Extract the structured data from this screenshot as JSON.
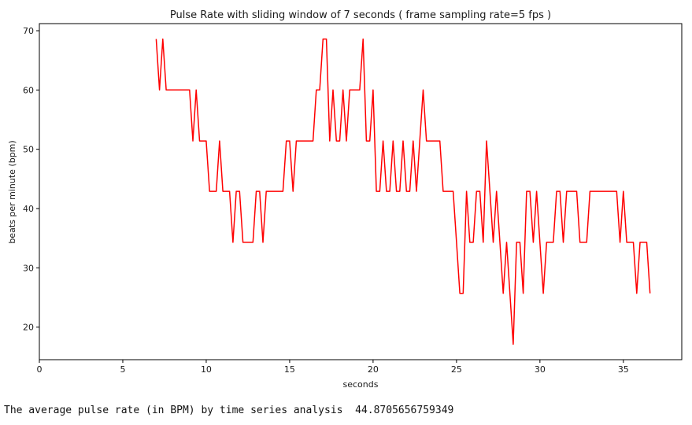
{
  "chart_data": {
    "type": "line",
    "title": "Pulse Rate with sliding window of 7 seconds  ( frame sampling rate=5 fps )",
    "xlabel": "seconds",
    "ylabel": "beats per minute (bpm)",
    "xlim": [
      0,
      38.5
    ],
    "ylim": [
      14.5,
      71.2
    ],
    "xticks": [
      0,
      5,
      10,
      15,
      20,
      25,
      30,
      35
    ],
    "yticks": [
      20,
      30,
      40,
      50,
      60,
      70
    ],
    "grid": false,
    "series": [
      {
        "color": "#ff0000",
        "x": [
          7.0,
          7.2,
          7.4,
          7.6,
          7.8,
          8.0,
          8.2,
          8.4,
          8.6,
          8.8,
          9.0,
          9.2,
          9.4,
          9.6,
          9.8,
          10.0,
          10.2,
          10.4,
          10.6,
          10.8,
          11.0,
          11.2,
          11.4,
          11.6,
          11.8,
          12.0,
          12.2,
          12.4,
          12.6,
          12.8,
          13.0,
          13.2,
          13.4,
          13.6,
          13.8,
          14.0,
          14.2,
          14.4,
          14.6,
          14.8,
          15.0,
          15.2,
          15.4,
          15.6,
          15.8,
          16.0,
          16.2,
          16.4,
          16.6,
          16.8,
          17.0,
          17.2,
          17.4,
          17.6,
          17.8,
          18.0,
          18.2,
          18.4,
          18.6,
          18.8,
          19.0,
          19.2,
          19.4,
          19.6,
          19.8,
          20.0,
          20.2,
          20.4,
          20.6,
          20.8,
          21.0,
          21.2,
          21.4,
          21.6,
          21.8,
          22.0,
          22.2,
          22.4,
          22.6,
          22.8,
          23.0,
          23.2,
          23.4,
          23.6,
          23.8,
          24.0,
          24.2,
          24.4,
          24.6,
          24.8,
          25.0,
          25.2,
          25.4,
          25.6,
          25.8,
          26.0,
          26.2,
          26.4,
          26.6,
          26.8,
          27.0,
          27.2,
          27.4,
          27.6,
          27.8,
          28.0,
          28.2,
          28.4,
          28.6,
          28.8,
          29.0,
          29.2,
          29.4,
          29.6,
          29.8,
          30.0,
          30.2,
          30.4,
          30.6,
          30.8,
          31.0,
          31.2,
          31.4,
          31.6,
          31.8,
          32.0,
          32.2,
          32.4,
          32.6,
          32.8,
          33.0,
          33.2,
          33.4,
          33.6,
          33.8,
          34.0,
          34.2,
          34.4,
          34.6,
          34.8,
          35.0,
          35.2,
          35.4,
          35.6,
          35.8,
          36.0,
          36.2,
          36.4,
          36.6
        ],
        "y": [
          68.6,
          60.0,
          68.6,
          60.0,
          60.0,
          60.0,
          60.0,
          60.0,
          60.0,
          60.0,
          60.0,
          51.4,
          60.0,
          51.4,
          51.4,
          51.4,
          42.9,
          42.9,
          42.9,
          51.4,
          42.9,
          42.9,
          42.9,
          34.3,
          42.9,
          42.9,
          34.3,
          34.3,
          34.3,
          34.3,
          42.9,
          42.9,
          34.3,
          42.9,
          42.9,
          42.9,
          42.9,
          42.9,
          42.9,
          51.4,
          51.4,
          42.9,
          51.4,
          51.4,
          51.4,
          51.4,
          51.4,
          51.4,
          60.0,
          60.0,
          68.6,
          68.6,
          51.4,
          60.0,
          51.4,
          51.4,
          60.0,
          51.4,
          60.0,
          60.0,
          60.0,
          60.0,
          68.6,
          51.4,
          51.4,
          60.0,
          42.9,
          42.9,
          51.4,
          42.9,
          42.9,
          51.4,
          42.9,
          42.9,
          51.4,
          42.9,
          42.9,
          51.4,
          42.9,
          51.4,
          60.0,
          51.4,
          51.4,
          51.4,
          51.4,
          51.4,
          42.9,
          42.9,
          42.9,
          42.9,
          34.3,
          25.7,
          25.7,
          42.9,
          34.3,
          34.3,
          42.9,
          42.9,
          34.3,
          51.4,
          42.9,
          34.3,
          42.9,
          34.3,
          25.7,
          34.3,
          25.7,
          17.1,
          34.3,
          34.3,
          25.7,
          42.9,
          42.9,
          34.3,
          42.9,
          34.3,
          25.7,
          34.3,
          34.3,
          34.3,
          42.9,
          42.9,
          34.3,
          42.9,
          42.9,
          42.9,
          42.9,
          34.3,
          34.3,
          34.3,
          42.9,
          42.9,
          42.9,
          42.9,
          42.9,
          42.9,
          42.9,
          42.9,
          42.9,
          34.3,
          42.9,
          34.3,
          34.3,
          34.3,
          25.7,
          34.3,
          34.3,
          34.3,
          25.7
        ]
      }
    ]
  },
  "output": {
    "text": "The average pulse rate (in BPM) by time series analysis  44.8705656759349"
  }
}
